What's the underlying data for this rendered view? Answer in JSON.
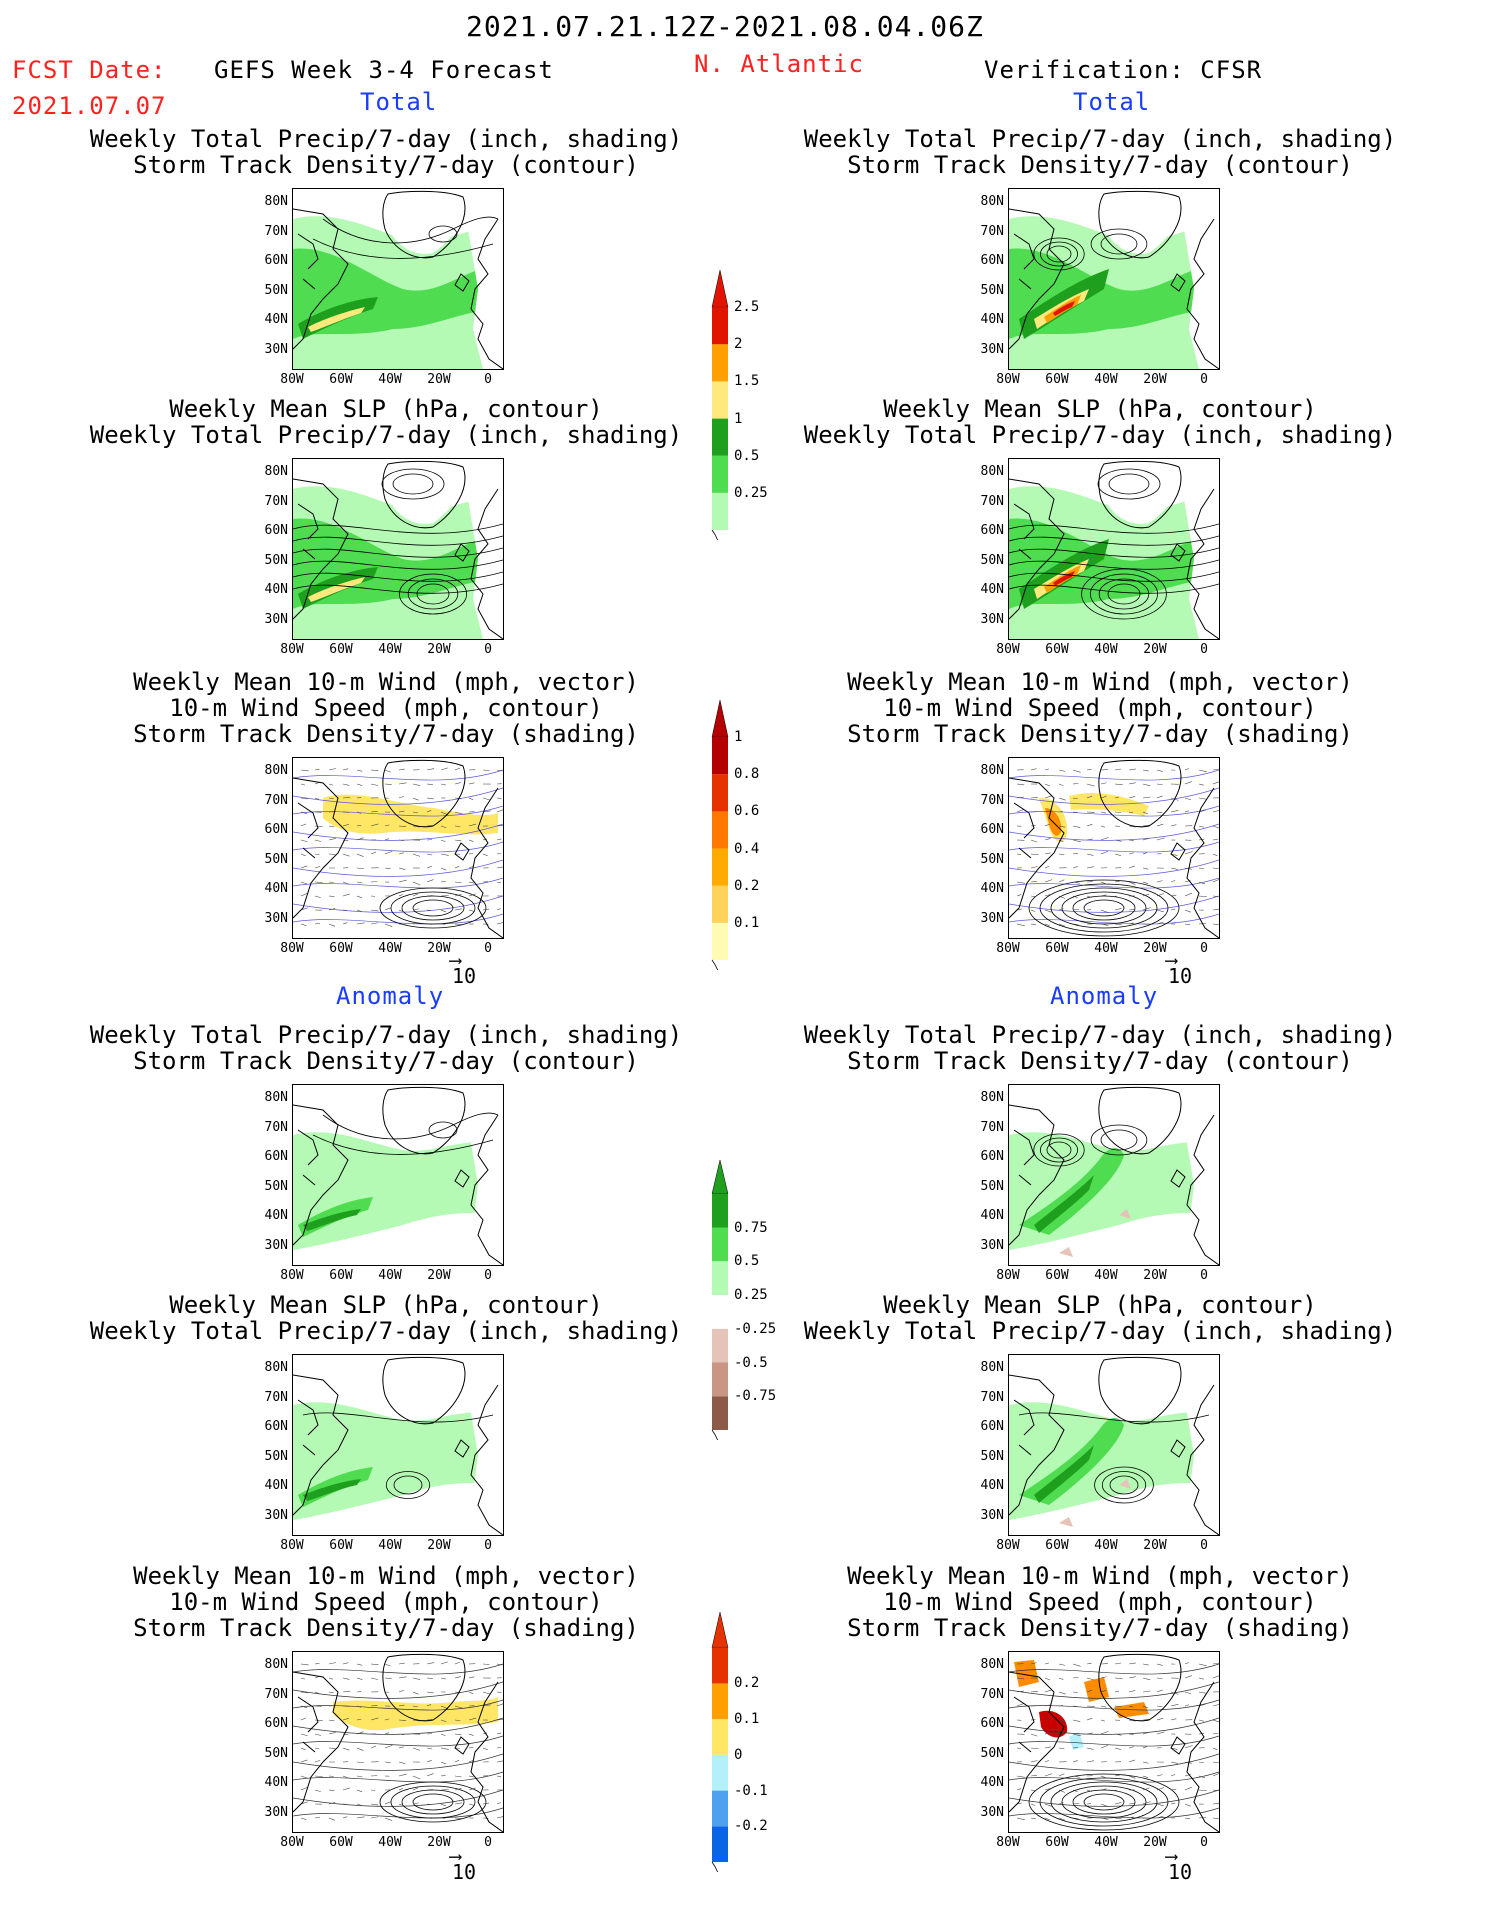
{
  "header": {
    "date_range": "2021.07.21.12Z-2021.08.04.06Z",
    "fcst_label": "FCST Date:",
    "fcst_date": "2021.07.07",
    "model_title": "GEFS Week 3-4 Forecast",
    "region": "N. Atlantic",
    "verification": "Verification: CFSR"
  },
  "sections": {
    "total": "Total",
    "anomaly": "Anomaly"
  },
  "panel_titles": {
    "precip_storm_1": "Weekly Total Precip/7-day (inch, shading)",
    "precip_storm_2": "Storm Track Density/7-day (contour)",
    "slp_precip_1": "Weekly Mean SLP (hPa, contour)",
    "slp_precip_2": "Weekly Total Precip/7-day (inch, shading)",
    "wind_1": "Weekly Mean 10-m Wind (mph, vector)",
    "wind_2": "10-m Wind Speed (mph, contour)",
    "wind_3": "Storm Track Density/7-day (shading)"
  },
  "axes": {
    "lat_ticks": [
      "80N",
      "70N",
      "60N",
      "50N",
      "40N",
      "30N"
    ],
    "lon_ticks": [
      "80W",
      "60W",
      "40W",
      "20W",
      "0"
    ]
  },
  "vector_ref": "10",
  "colors": {
    "title_red": "#ff2020",
    "section_blue": "#1a3cff",
    "precip_light": "#b4fab4",
    "precip_green": "#50dc50",
    "precip_dark": "#1ea01e",
    "precip_yellow": "#ffe87c",
    "precip_orange": "#ffa000",
    "precip_red": "#e11400",
    "storm_yellow": "#ffe664",
    "storm_orange": "#ff8c00",
    "storm_red": "#c80000",
    "anom_brown": "#e6c3b9",
    "wind_blue": "#5a5adc",
    "anom_cyan": "#b4f0fa",
    "anom_blue": "#0a64e6"
  },
  "chart_data": [
    {
      "type": "colorbar",
      "name": "total_precip",
      "levels": [
        "0.25",
        "0.5",
        "1",
        "1.5",
        "2",
        "2.5"
      ],
      "colors": [
        "#b4fab4",
        "#50dc50",
        "#1ea01e",
        "#ffe87c",
        "#ffa000",
        "#e11400"
      ]
    },
    {
      "type": "colorbar",
      "name": "total_storm_density",
      "levels": [
        "0.1",
        "0.2",
        "0.4",
        "0.6",
        "0.8",
        "1"
      ],
      "colors": [
        "#fffab4",
        "#ffd25a",
        "#ffaa00",
        "#ff7800",
        "#e63200",
        "#b40000"
      ]
    },
    {
      "type": "colorbar",
      "name": "anomaly_precip",
      "levels": [
        "-0.75",
        "-0.5",
        "-0.25",
        "0.25",
        "0.5",
        "0.75"
      ],
      "colors": [
        "#8c5a46",
        "#c89682",
        "#e6c3b9",
        "#ffffff",
        "#b4fab4",
        "#50dc50",
        "#1ea01e"
      ]
    },
    {
      "type": "colorbar",
      "name": "anomaly_storm_density",
      "levels": [
        "-0.2",
        "-0.1",
        "0",
        "0.1",
        "0.2"
      ],
      "colors": [
        "#0a64e6",
        "#50a0f0",
        "#b4f0fa",
        "#ffe664",
        "#ffa000",
        "#e63200"
      ]
    }
  ]
}
